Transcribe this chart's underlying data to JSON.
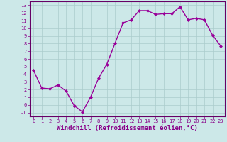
{
  "x": [
    0,
    1,
    2,
    3,
    4,
    5,
    6,
    7,
    8,
    9,
    10,
    11,
    12,
    13,
    14,
    15,
    16,
    17,
    18,
    19,
    20,
    21,
    22,
    23
  ],
  "y": [
    4.5,
    2.2,
    2.1,
    2.6,
    1.8,
    -0.1,
    -0.9,
    1.0,
    3.5,
    5.3,
    8.0,
    10.7,
    11.1,
    12.3,
    12.3,
    11.8,
    11.9,
    11.9,
    12.8,
    11.1,
    11.3,
    11.1,
    9.1,
    7.7
  ],
  "line_color": "#990099",
  "marker": "D",
  "marker_size": 2.0,
  "bg_color": "#cce8e8",
  "grid_color": "#aacccc",
  "xlabel": "Windchill (Refroidissement éolien,°C)",
  "xlim": [
    -0.5,
    23.5
  ],
  "ylim": [
    -1.5,
    13.5
  ],
  "yticks": [
    -1,
    0,
    1,
    2,
    3,
    4,
    5,
    6,
    7,
    8,
    9,
    10,
    11,
    12,
    13
  ],
  "xticks": [
    0,
    1,
    2,
    3,
    4,
    5,
    6,
    7,
    8,
    9,
    10,
    11,
    12,
    13,
    14,
    15,
    16,
    17,
    18,
    19,
    20,
    21,
    22,
    23
  ],
  "tick_fontsize": 5.0,
  "xlabel_fontsize": 6.5,
  "label_color": "#880088",
  "spine_color": "#660066",
  "linewidth": 1.0
}
